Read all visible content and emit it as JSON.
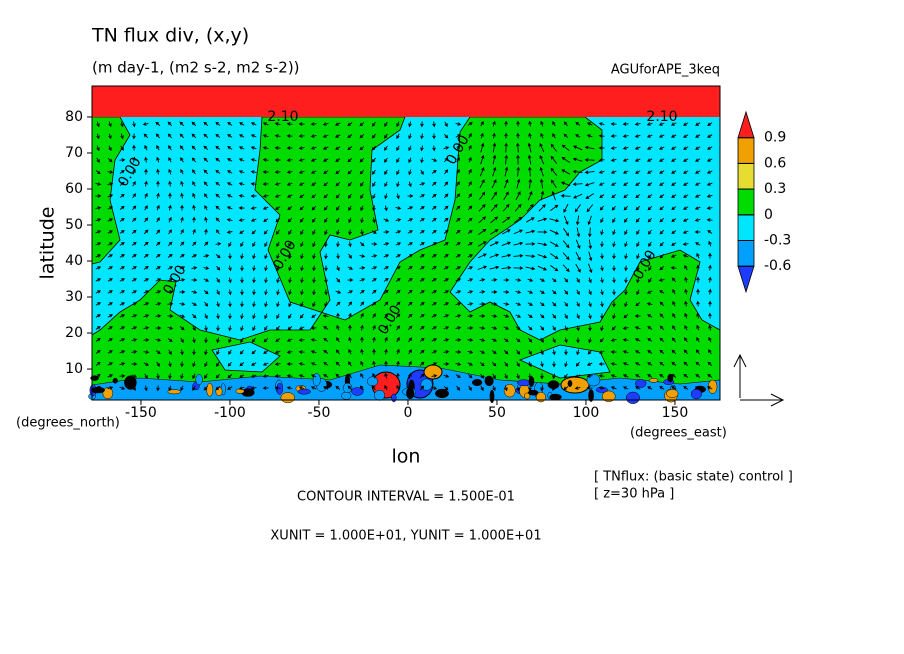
{
  "chart_data": {
    "type": "contour",
    "title": "TN flux div, (x,y)",
    "subtitle": "(m day-1, (m2 s-2, m2 s-2))",
    "experiment": "AGUforAPE_3keq",
    "xlabel": "lon",
    "ylabel": "latitude",
    "xunit_label": "(degrees_east)",
    "yunit_label": "(degrees_north)",
    "xlim": [
      -177.5,
      175.3
    ],
    "ylim": [
      1.4,
      88.6
    ],
    "xticks": [
      -150,
      -100,
      -50,
      0,
      50,
      100,
      150
    ],
    "yticks": [
      10,
      20,
      30,
      40,
      50,
      60,
      70,
      80
    ],
    "colorbar": {
      "levels": [
        -0.6,
        -0.3,
        0,
        0.3,
        0.6,
        0.9
      ],
      "colors": [
        "#1e3cff",
        "#00a0ff",
        "#00e6ff",
        "#00dc00",
        "#e6dc32",
        "#f0a000",
        "#ff1e1e"
      ]
    },
    "contour_labels": [
      "0.00",
      "0.00",
      "0.00",
      "0.00",
      "0.00",
      "0.00",
      "2.10",
      "2.10"
    ],
    "footer": [
      "CONTOUR INTERVAL = 1.500E-01",
      "XUNIT = 1.000E+01, YUNIT = 1.000E+01"
    ],
    "notes": [
      "[ TNflux: (basic state) control ]",
      "[ z=30 hPa ]"
    ]
  }
}
